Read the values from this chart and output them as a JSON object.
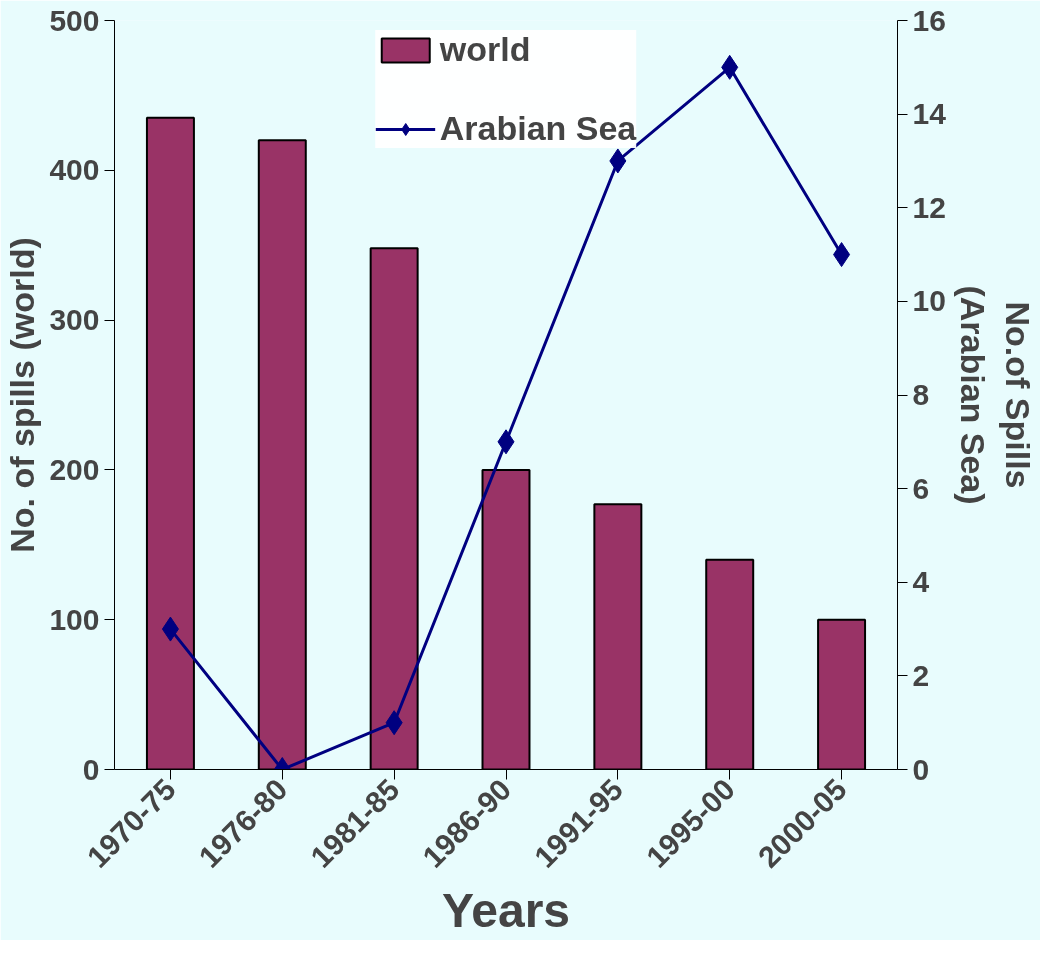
{
  "chart_data": {
    "type": "bar",
    "xlabel": "Years",
    "ylabel": "No. of spills (world)",
    "y2label": "No.of Spills\n(Arabian Sea)",
    "categories": [
      "1970-75",
      "1976-80",
      "1981-85",
      "1986-90",
      "1991-95",
      "1995-00",
      "2000-05"
    ],
    "series": [
      {
        "name": "world",
        "color": "#993366",
        "values": [
          435,
          420,
          348,
          200,
          177,
          140,
          100
        ]
      },
      {
        "name": "Arabian Sea",
        "type": "line",
        "axis": "y2",
        "color": "#000080",
        "values": [
          3,
          0,
          1,
          7,
          13,
          15,
          11
        ]
      }
    ],
    "ylim": [
      0,
      500
    ],
    "yticks": [
      0,
      100,
      200,
      300,
      400,
      500
    ],
    "y2lim": [
      0,
      16
    ],
    "y2ticks": [
      0,
      2,
      4,
      6,
      8,
      10,
      12,
      14,
      16
    ],
    "marker": "diamond",
    "line_style": "solid",
    "legend": "top",
    "grid": false
  }
}
